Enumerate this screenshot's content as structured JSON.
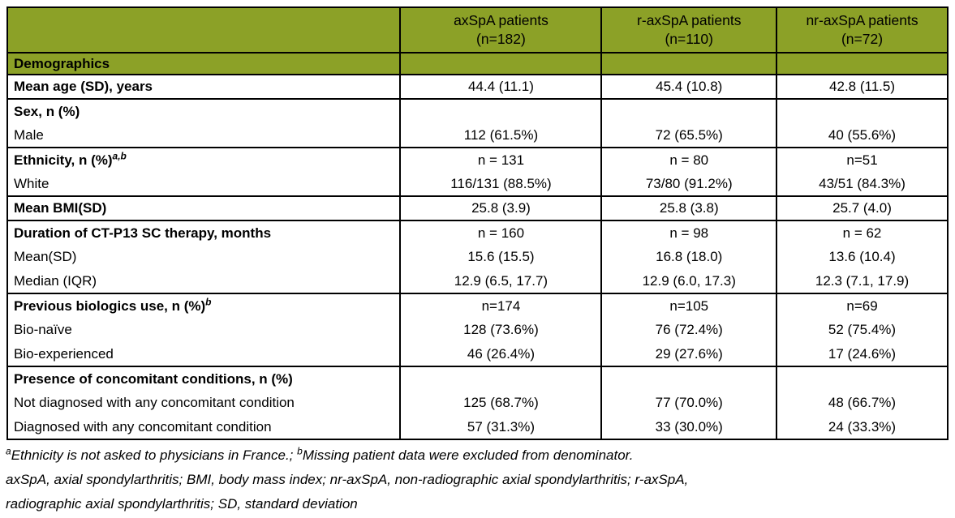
{
  "colors": {
    "header_green": "#8CA127",
    "border": "#000000",
    "text": "#000000",
    "background": "#FFFFFF"
  },
  "table": {
    "header": {
      "cols": [
        {
          "title": "axSpA patients",
          "n": "(n=182)"
        },
        {
          "title": "r-axSpA patients",
          "n": "(n=110)"
        },
        {
          "title": "nr-axSpA patients",
          "n": "(n=72)"
        }
      ]
    },
    "rows": [
      {
        "label": "Demographics",
        "section": true,
        "bold": true,
        "sup": "",
        "group_start": true,
        "values": [
          "",
          "",
          ""
        ]
      },
      {
        "label": "Mean age (SD), years",
        "section": false,
        "bold": true,
        "sup": "",
        "group_start": true,
        "values": [
          "44.4 (11.1)",
          "45.4 (10.8)",
          "42.8 (11.5)"
        ]
      },
      {
        "label": "Sex, n (%)",
        "section": false,
        "bold": true,
        "sup": "",
        "group_start": true,
        "values": [
          "",
          "",
          ""
        ]
      },
      {
        "label": "Male",
        "section": false,
        "bold": false,
        "sup": "",
        "group_start": false,
        "values": [
          "112 (61.5%)",
          "72 (65.5%)",
          "40 (55.6%)"
        ]
      },
      {
        "label": "Ethnicity, n (%)",
        "section": false,
        "bold": true,
        "sup": "a,b",
        "group_start": true,
        "values": [
          "n = 131",
          "n = 80",
          "n=51"
        ]
      },
      {
        "label": "White",
        "section": false,
        "bold": false,
        "sup": "",
        "group_start": false,
        "values": [
          "116/131 (88.5%)",
          "73/80 (91.2%)",
          "43/51 (84.3%)"
        ]
      },
      {
        "label": "Mean BMI(SD)",
        "section": false,
        "bold": true,
        "sup": "",
        "group_start": true,
        "values": [
          "25.8 (3.9)",
          "25.8 (3.8)",
          "25.7 (4.0)"
        ]
      },
      {
        "label": "Duration of CT-P13 SC therapy, months",
        "section": false,
        "bold": true,
        "sup": "",
        "group_start": true,
        "values": [
          "n = 160",
          "n = 98",
          "n = 62"
        ]
      },
      {
        "label": "Mean(SD)",
        "section": false,
        "bold": false,
        "sup": "",
        "group_start": false,
        "values": [
          "15.6 (15.5)",
          "16.8 (18.0)",
          "13.6 (10.4)"
        ]
      },
      {
        "label": "Median (IQR)",
        "section": false,
        "bold": false,
        "sup": "",
        "group_start": false,
        "values": [
          "12.9 (6.5, 17.7)",
          "12.9 (6.0, 17.3)",
          "12.3 (7.1, 17.9)"
        ]
      },
      {
        "label": "Previous biologics use, n (%)",
        "section": false,
        "bold": true,
        "sup": "b",
        "group_start": true,
        "values": [
          "n=174",
          "n=105",
          "n=69"
        ]
      },
      {
        "label": "Bio-naïve",
        "section": false,
        "bold": false,
        "sup": "",
        "group_start": false,
        "values": [
          "128 (73.6%)",
          "76 (72.4%)",
          "52 (75.4%)"
        ]
      },
      {
        "label": "Bio-experienced",
        "section": false,
        "bold": false,
        "sup": "",
        "group_start": false,
        "values": [
          "46 (26.4%)",
          "29 (27.6%)",
          "17 (24.6%)"
        ]
      },
      {
        "label": "Presence of concomitant conditions, n (%)",
        "section": false,
        "bold": true,
        "sup": "",
        "group_start": true,
        "values": [
          "",
          "",
          ""
        ]
      },
      {
        "label": "Not diagnosed with any concomitant condition",
        "section": false,
        "bold": false,
        "sup": "",
        "group_start": false,
        "values": [
          "125 (68.7%)",
          "77 (70.0%)",
          "48 (66.7%)"
        ]
      },
      {
        "label": "Diagnosed with any concomitant condition",
        "section": false,
        "bold": false,
        "sup": "",
        "group_start": false,
        "values": [
          "57 (31.3%)",
          "33 (30.0%)",
          "24 (33.3%)"
        ]
      }
    ]
  },
  "footnotes": {
    "note_a_sup": "a",
    "note_a_text": "Ethnicity is not asked to physicians in France.; ",
    "note_b_sup": "b",
    "note_b_text": "Missing patient data were excluded from denominator.",
    "abbrev_line1": "axSpA, axial spondylarthritis; BMI, body mass index; nr-axSpA, non-radiographic axial spondylarthritis; r-axSpA,",
    "abbrev_line2": "radiographic axial spondylarthritis; SD, standard deviation"
  }
}
